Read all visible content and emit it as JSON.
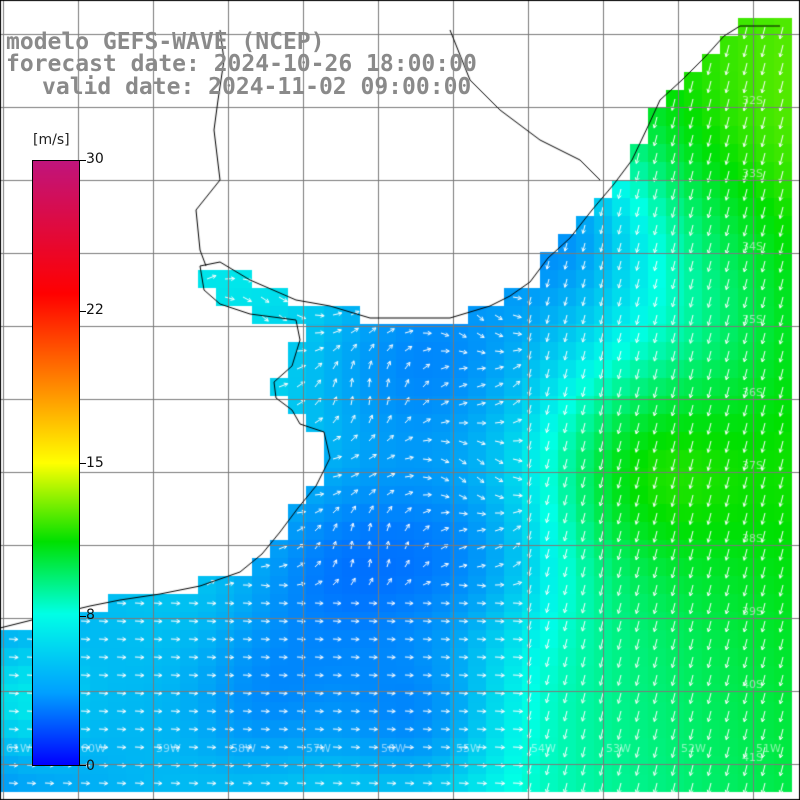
{
  "header": {
    "model": "modelo GEFS-WAVE (NCEP)",
    "forecast": "forecast date: 2024-10-26 18:00:00",
    "valid": "valid date: 2024-11-02 09:00:00"
  },
  "colorbar": {
    "unit": "[m/s]",
    "labels": [
      "30",
      "22",
      "15",
      "8",
      "0"
    ],
    "values": [
      30,
      22,
      15,
      8,
      0
    ],
    "colors": [
      "#c0147c",
      "#ff0000",
      "#ff9000",
      "#ffff00",
      "#00e000",
      "#00ffe6",
      "#00a0ff",
      "#0000ff"
    ]
  },
  "lat_labels": [
    "32S",
    "33S",
    "34S",
    "35S",
    "36S",
    "37S",
    "38S",
    "39S",
    "40S",
    "41S"
  ],
  "lon_labels": [
    "61W",
    "60W",
    "59W",
    "58W",
    "57W",
    "56W",
    "55W",
    "54W",
    "53W",
    "52W",
    "51W"
  ]
}
